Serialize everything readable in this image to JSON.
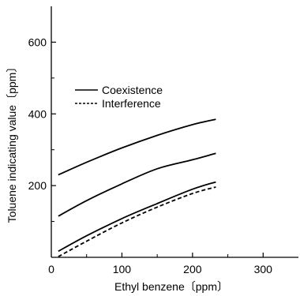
{
  "chart_data": {
    "type": "line",
    "title": "",
    "xlabel": "Ethyl benzene〔ppm〕",
    "ylabel": "Toluene indicating value〔ppm〕",
    "xlim": [
      0,
      350
    ],
    "ylim": [
      0,
      700
    ],
    "x_ticks": [
      0,
      100,
      200,
      300
    ],
    "x_minor_ticks": [
      50,
      150,
      250
    ],
    "y_ticks": [
      200,
      400,
      600
    ],
    "y_minor_ticks": [
      100,
      300,
      500
    ],
    "grid": false,
    "legend_position": "upper-left",
    "legend": [
      {
        "label": "Coexistence",
        "style": "solid"
      },
      {
        "label": "Interference",
        "style": "dashed"
      }
    ],
    "series": [
      {
        "style": "solid",
        "group": "Coexistence",
        "x": [
          10,
          50,
          100,
          150,
          200,
          233
        ],
        "y": [
          230,
          265,
          305,
          340,
          370,
          385
        ]
      },
      {
        "style": "solid",
        "group": "Coexistence",
        "x": [
          10,
          50,
          100,
          150,
          200,
          233
        ],
        "y": [
          115,
          158,
          205,
          247,
          272,
          290
        ]
      },
      {
        "style": "solid",
        "group": "Coexistence",
        "x": [
          10,
          50,
          100,
          150,
          200,
          233
        ],
        "y": [
          17,
          60,
          108,
          150,
          190,
          210
        ]
      },
      {
        "style": "dashed",
        "group": "Interference",
        "x": [
          10,
          50,
          100,
          150,
          200,
          233
        ],
        "y": [
          2,
          45,
          96,
          140,
          178,
          196
        ]
      }
    ]
  }
}
